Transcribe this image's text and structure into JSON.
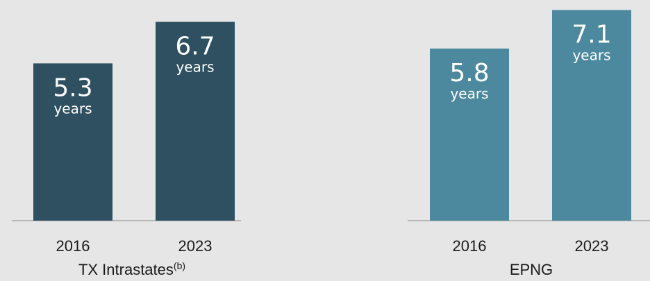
{
  "chart_data": [
    {
      "type": "bar",
      "title": "TX Intrastates",
      "title_superscript": "(b)",
      "categories": [
        "2016",
        "2023"
      ],
      "values": [
        5.3,
        6.7
      ],
      "value_labels": [
        "5.3",
        "6.7"
      ],
      "unit_label": "years",
      "color": "#2e5060",
      "ylim": [
        0,
        7.25
      ]
    },
    {
      "type": "bar",
      "title": "EPNG",
      "categories": [
        "2016",
        "2023"
      ],
      "values": [
        5.8,
        7.1
      ],
      "value_labels": [
        "5.8",
        "7.1"
      ],
      "unit_label": "years",
      "color": "#4c889e",
      "ylim": [
        0,
        7.25
      ]
    }
  ]
}
